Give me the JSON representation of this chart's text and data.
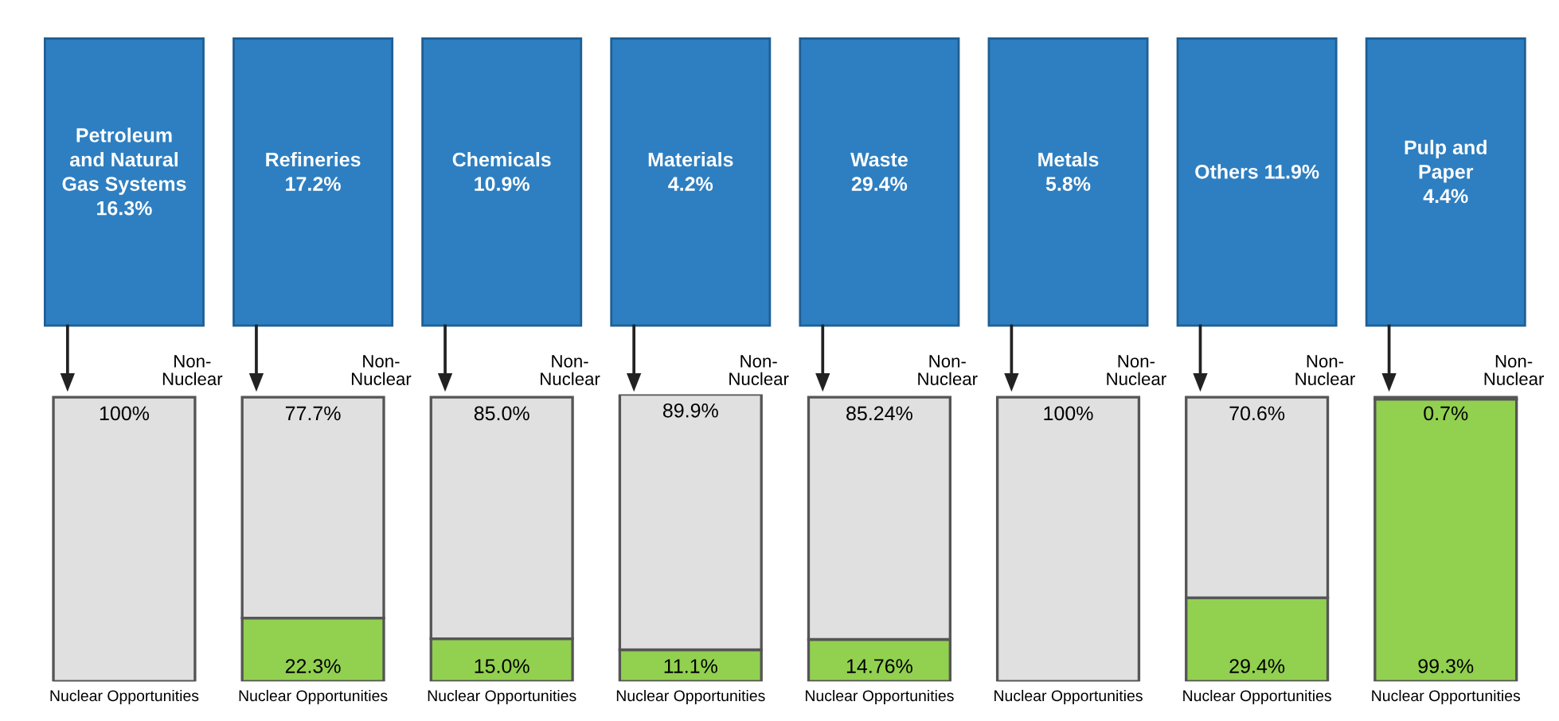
{
  "chart_data": {
    "type": "bar",
    "stacked": true,
    "categories": [
      "Petroleum\nand Natural\nGas Systems\n16.3%",
      "Refineries\n17.2%",
      "Chemicals\n10.9%",
      "Materials\n4.2%",
      "Waste\n29.4%",
      "Metals\n5.8%",
      "Others 11.9%",
      "Pulp and\nPaper\n4.4%"
    ],
    "series": [
      {
        "name": "Nuclear Opportunities",
        "color": "#92d050",
        "values": [
          0,
          22.3,
          15.0,
          11.1,
          14.76,
          0,
          29.4,
          99.3
        ],
        "value_labels": [
          null,
          "22.3%",
          "15.0%",
          "11.1%",
          "14.76%",
          null,
          "29.4%",
          "99.3%"
        ]
      },
      {
        "name": "Non-Nuclear",
        "color": "#e0e0e0",
        "values": [
          100,
          77.7,
          85.0,
          89.9,
          85.24,
          100,
          70.6,
          0.7
        ],
        "value_labels": [
          "100%",
          "77.7%",
          "85.0%",
          "89.9%",
          "85.24%",
          "100%",
          "70.6%",
          "0.7%"
        ]
      }
    ],
    "ylim": [
      0,
      101
    ],
    "legend": false
  }
}
